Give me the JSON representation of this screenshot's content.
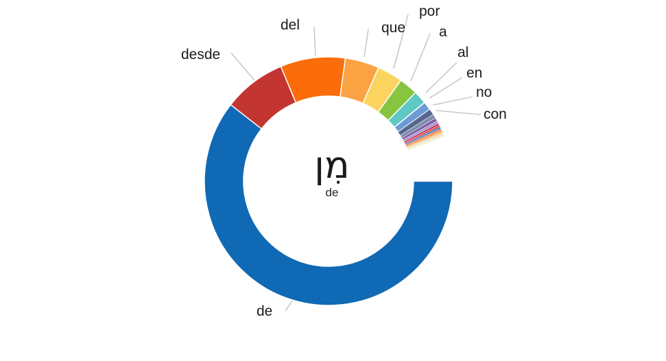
{
  "page": {
    "background": "#ffffff"
  },
  "chart_data": {
    "type": "donut",
    "title": "מִן",
    "description": "Donut chart of Spanish translation frequencies for the Hebrew word מִן (min); ring is open (gap) for the untranslated/other remainder",
    "center_label": "מִן",
    "center_sublabel": "de",
    "start_angle_deg": 90,
    "direction": "clockwise",
    "gap_deg": 20.8,
    "stroke_color": "#ffffff",
    "legend_position": "callouts",
    "segments": [
      {
        "label": "de",
        "sweep_deg": 218.0,
        "percent": 60.6,
        "color": "#1069b4"
      },
      {
        "label": "desde",
        "sweep_deg": 29.4,
        "percent": 8.2,
        "color": "#c23531"
      },
      {
        "label": "del",
        "sweep_deg": 30.4,
        "percent": 8.4,
        "color": "#fa6d0a"
      },
      {
        "label": "que",
        "sweep_deg": 16.0,
        "percent": 4.4,
        "color": "#fba342"
      },
      {
        "label": "por",
        "sweep_deg": 11.9,
        "percent": 3.3,
        "color": "#fbd45f"
      },
      {
        "label": "a",
        "sweep_deg": 8.8,
        "percent": 2.4,
        "color": "#87c440"
      },
      {
        "label": "al",
        "sweep_deg": 6.2,
        "percent": 1.7,
        "color": "#5fc7c4"
      },
      {
        "label": "en",
        "sweep_deg": 4.0,
        "percent": 1.1,
        "color": "#6d9bd5"
      },
      {
        "label": "no",
        "sweep_deg": 2.8,
        "percent": 0.8,
        "color": "#56688f"
      },
      {
        "label": "con",
        "sweep_deg": 2.0,
        "percent": 0.6,
        "color": "#7d8cab"
      },
      {
        "label": "",
        "sweep_deg": 1.5,
        "percent": 0.4,
        "color": "#7d5ba6"
      },
      {
        "label": "",
        "sweep_deg": 1.2,
        "percent": 0.33,
        "color": "#a492cb"
      },
      {
        "label": "",
        "sweep_deg": 1.0,
        "percent": 0.28,
        "color": "#c13060"
      },
      {
        "label": "",
        "sweep_deg": 0.85,
        "percent": 0.24,
        "color": "#d8372a"
      },
      {
        "label": "",
        "sweep_deg": 0.85,
        "percent": 0.24,
        "color": "#2a70d0"
      },
      {
        "label": "",
        "sweep_deg": 0.75,
        "percent": 0.21,
        "color": "#e9662b"
      },
      {
        "label": "",
        "sweep_deg": 0.7,
        "percent": 0.19,
        "color": "#f28b35"
      },
      {
        "label": "",
        "sweep_deg": 0.6,
        "percent": 0.17,
        "color": "#f6a95e"
      },
      {
        "label": "",
        "sweep_deg": 0.55,
        "percent": 0.15,
        "color": "#f5c389"
      },
      {
        "label": "",
        "sweep_deg": 0.5,
        "percent": 0.14,
        "color": "#f2da9d"
      },
      {
        "label": "",
        "sweep_deg": 0.45,
        "percent": 0.13,
        "color": "#cfe0a0"
      },
      {
        "label": "",
        "sweep_deg": 0.4,
        "percent": 0.11,
        "color": "#e6edcf"
      },
      {
        "label": "",
        "sweep_deg": 0.35,
        "percent": 0.1,
        "color": "#f4f1e5"
      }
    ]
  }
}
